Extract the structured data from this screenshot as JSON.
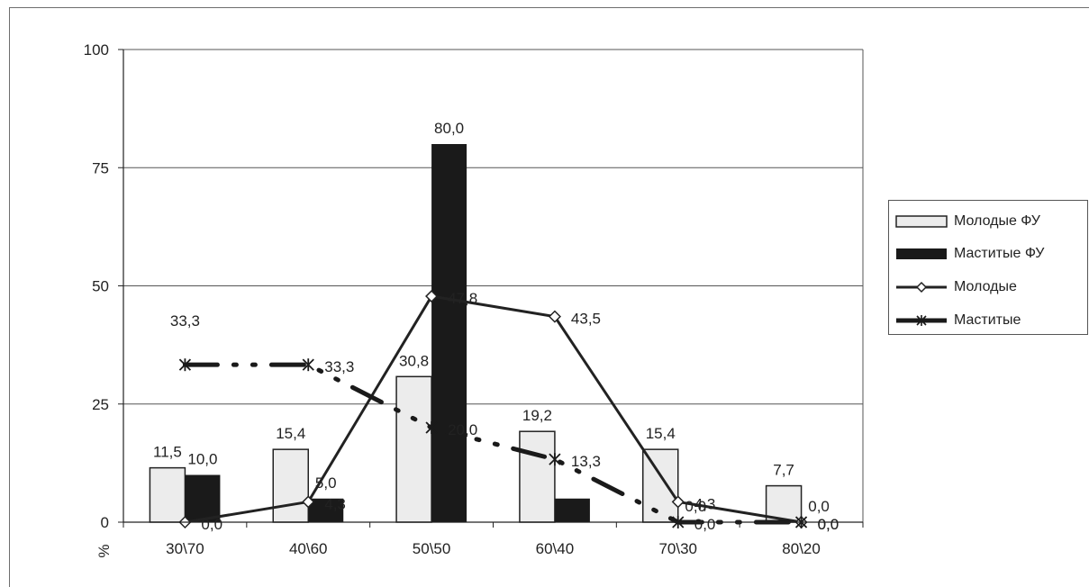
{
  "chart_data": {
    "type": "bar",
    "categories": [
      "30\\70",
      "40\\60",
      "50\\50",
      "60\\40",
      "70\\30",
      "80\\20"
    ],
    "ylabel": "%",
    "ylim": [
      0,
      100
    ],
    "yticks": [
      "0",
      "25",
      "50",
      "75",
      "100"
    ],
    "grid": true,
    "legend_position": "right",
    "series": [
      {
        "name": "Молодые ФУ",
        "kind": "bar",
        "color": "#ececec",
        "values": [
          11.5,
          15.4,
          30.8,
          19.2,
          15.4,
          7.7
        ],
        "labels": [
          "11,5",
          "15,4",
          "30,8",
          "19,2",
          "15,4",
          "7,7"
        ]
      },
      {
        "name": "Маститые ФУ",
        "kind": "bar",
        "color": "#1a1a1a",
        "values": [
          10.0,
          5.0,
          80.0,
          5.0,
          0.0,
          0.0
        ],
        "labels": [
          "10,0",
          "5,0",
          "80,0",
          "",
          "0,0",
          "0,0"
        ]
      },
      {
        "name": "Молодые",
        "kind": "line",
        "marker": "diamond",
        "color": "#222222",
        "values": [
          0.0,
          4.3,
          47.8,
          43.5,
          4.3,
          0.0
        ],
        "labels": [
          "0,0",
          "4,3",
          "47,8",
          "43,5",
          "4,3",
          "0,0"
        ]
      },
      {
        "name": "Маститые",
        "kind": "line",
        "marker": "asterisk",
        "style": "dash-dot",
        "color": "#1a1a1a",
        "values": [
          33.3,
          33.3,
          20.0,
          13.3,
          0.0,
          0.0
        ],
        "labels": [
          "33,3",
          "33,3",
          "20,0",
          "13,3",
          "0,0",
          "0,0"
        ]
      }
    ]
  }
}
